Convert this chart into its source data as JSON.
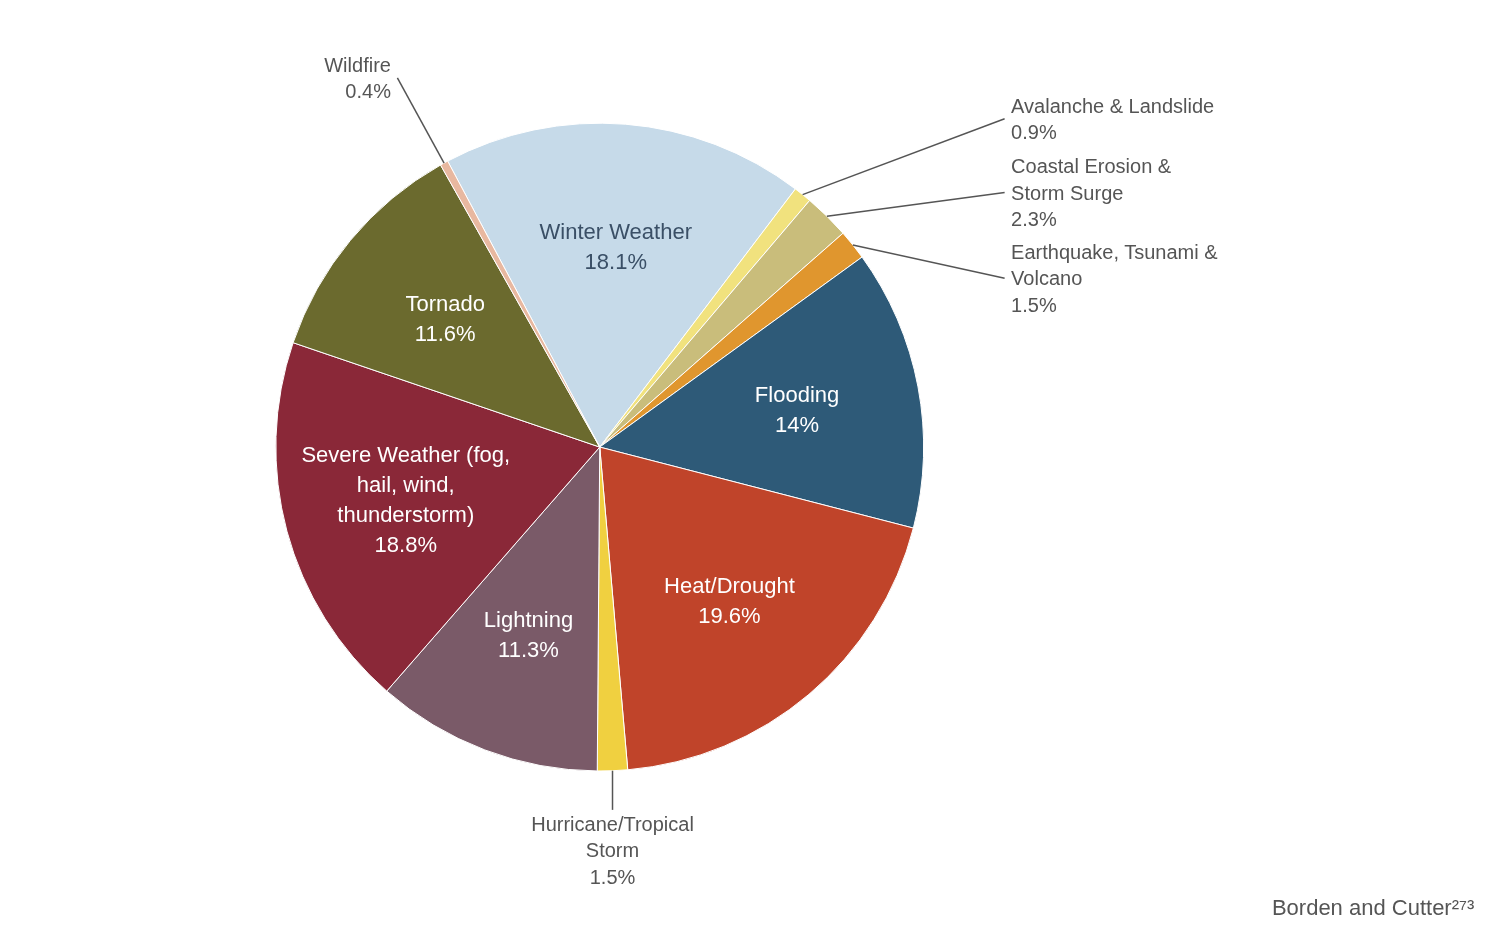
{
  "chart_data": {
    "type": "pie",
    "categories": [
      "Winter Weather",
      "Avalanche & Landslide",
      "Coastal Erosion & Storm Surge",
      "Earthquake, Tsunami & Volcano",
      "Flooding",
      "Heat/Drought",
      "Hurricane/Tropical Storm",
      "Lightning",
      "Severe Weather (fog, hail, wind, thunderstorm)",
      "Tornado",
      "Wildfire"
    ],
    "values": [
      18.1,
      0.9,
      2.3,
      1.5,
      14,
      19.6,
      1.5,
      11.3,
      18.8,
      11.6,
      0.4
    ],
    "value_labels": [
      "18.1%",
      "0.9%",
      "2.3%",
      "1.5%",
      "14%",
      "19.6%",
      "1.5%",
      "11.3%",
      "18.8%",
      "11.6%",
      "0.4%"
    ],
    "colors": [
      "#c6dae9",
      "#f1e27e",
      "#c9bd7b",
      "#e0962e",
      "#2e5a78",
      "#c0442a",
      "#f0d040",
      "#7a5a68",
      "#8a2838",
      "#6b6a2e",
      "#e8b8a0"
    ],
    "annotations": [
      "Borden and Cutter²⁷³"
    ]
  }
}
